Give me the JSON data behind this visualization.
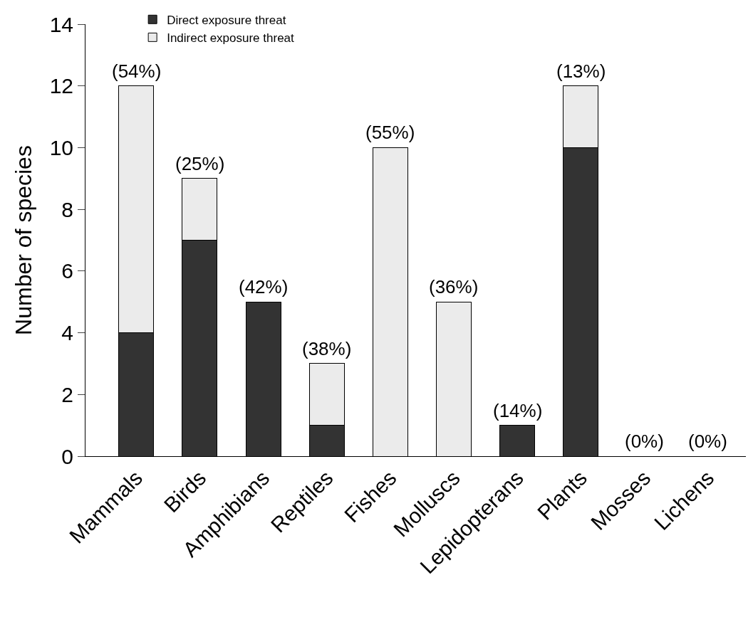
{
  "chart_data": {
    "type": "bar",
    "stacked": true,
    "ylabel": "Number of species",
    "categories": [
      "Mammals",
      "Birds",
      "Amphibians",
      "Reptiles",
      "Fishes",
      "Molluscs",
      "Lepidopterans",
      "Plants",
      "Mosses",
      "Lichens"
    ],
    "series": [
      {
        "name": "Direct exposure threat",
        "color": "#333333",
        "values": [
          4,
          7,
          5,
          1,
          0,
          0,
          1,
          10,
          0,
          0
        ]
      },
      {
        "name": "Indirect exposure threat",
        "color": "#ebebeb",
        "values": [
          8,
          2,
          0,
          2,
          10,
          5,
          0,
          2,
          0,
          0
        ]
      }
    ],
    "ylim": [
      0,
      14
    ],
    "yticks": [
      0,
      2,
      4,
      6,
      8,
      10,
      12,
      14
    ],
    "legend": "top left",
    "annotations": [
      {
        "text": "(54%)",
        "x": "Mammals",
        "y": 12
      },
      {
        "text": "(25%)",
        "x": "Birds",
        "y": 9
      },
      {
        "text": "(42%)",
        "x": "Amphibians",
        "y": 5
      },
      {
        "text": "(38%)",
        "x": "Reptiles",
        "y": 3
      },
      {
        "text": "(55%)",
        "x": "Fishes",
        "y": 10
      },
      {
        "text": "(36%)",
        "x": "Molluscs",
        "y": 5
      },
      {
        "text": "(14%)",
        "x": "Lepidopterans",
        "y": 1
      },
      {
        "text": "(13%)",
        "x": "Plants",
        "y": 12
      },
      {
        "text": "(0%)",
        "x": "Mosses",
        "y": 0
      },
      {
        "text": "(0%)",
        "x": "Lichens",
        "y": 0
      }
    ]
  }
}
